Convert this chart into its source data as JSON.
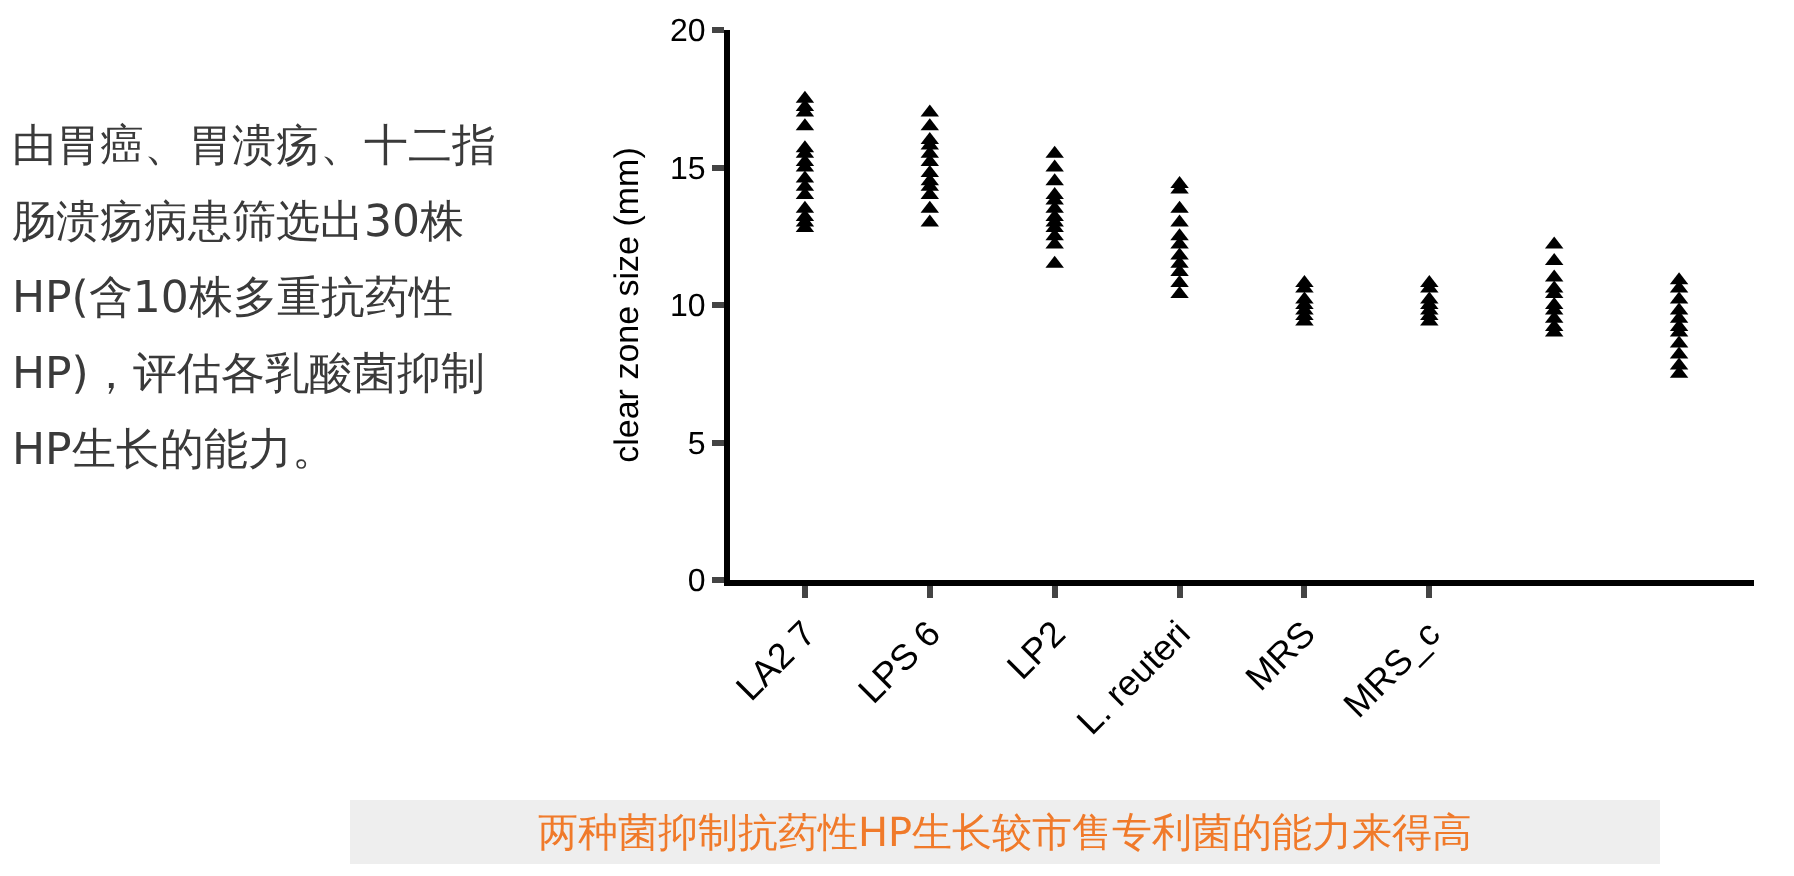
{
  "chart_data": {
    "type": "scatter",
    "ylabel": "clear zone size (mm)",
    "categories": [
      "LA2 7",
      "LPS 6",
      "LP2",
      "L. reuteri",
      "MRS",
      "MRS_c",
      null,
      null
    ],
    "ylim": [
      0,
      20
    ],
    "yticks": [
      0,
      5,
      10,
      15,
      20
    ],
    "grid": false,
    "marker": "triangle",
    "series": [
      {
        "color": "#000000",
        "values": [
          17.2,
          17.0,
          15.5,
          14.4,
          10.8,
          10.8,
          12.2,
          10.9
        ]
      },
      {
        "color": "#000000",
        "values": [
          17.5,
          16.5,
          15.0,
          14.2,
          10.6,
          10.6,
          11.6,
          10.6
        ]
      },
      {
        "color": "#000000",
        "values": [
          17.0,
          16.0,
          14.5,
          13.5,
          null,
          null,
          11.0,
          10.2
        ]
      },
      {
        "color": "#000000",
        "values": [
          16.5,
          15.5,
          14.0,
          13.0,
          10.2,
          10.2,
          10.6,
          9.8
        ]
      },
      {
        "color": "#000000",
        "values": [
          15.7,
          15.2,
          13.5,
          12.5,
          10.0,
          10.0,
          null,
          9.5
        ]
      },
      {
        "color": "#000000",
        "values": [
          15.5,
          14.8,
          13.2,
          null,
          9.8,
          9.8,
          10.0,
          9.2
        ]
      },
      {
        "color": "#000000",
        "values": [
          15.0,
          14.5,
          13.0,
          11.8,
          9.6,
          9.6,
          9.8,
          null
        ]
      },
      {
        "color": "#000000",
        "values": [
          14.6,
          14.3,
          12.8,
          11.5,
          9.4,
          9.4,
          9.5,
          8.6
        ]
      },
      {
        "color": "#000000",
        "values": [
          14.3,
          14.0,
          12.5,
          11.2,
          null,
          null,
          9.2,
          8.2
        ]
      },
      {
        "color": "#000000",
        "values": [
          14.0,
          13.5,
          12.2,
          10.8,
          null,
          null,
          null,
          7.8
        ]
      },
      {
        "color": "#000000",
        "values": [
          13.5,
          13.0,
          11.5,
          10.4,
          null,
          null,
          9.0,
          7.5
        ]
      },
      {
        "color": "#000000",
        "values": [
          13.2,
          null,
          13.8,
          12.2,
          null,
          null,
          10.4,
          9.0
        ]
      },
      {
        "color": "#000000",
        "values": [
          13.0,
          15.8,
          null,
          null,
          null,
          null,
          null,
          null
        ]
      },
      {
        "color": "#000000",
        "values": [
          12.8,
          null,
          null,
          null,
          null,
          null,
          null,
          null
        ]
      },
      {
        "color": "#000000",
        "values": [
          15.2,
          null,
          null,
          null,
          null,
          null,
          null,
          null
        ]
      }
    ],
    "annotations": [
      "由胃癌、胃溃疡、十二指肠溃疡病患筛选出30株HP(含10株多重抗药性HP)，评估各乳酸菌抑制HP生长的能力。",
      "两种菌抑制抗药性HP生长较市售专利菌的能力来得高"
    ]
  }
}
